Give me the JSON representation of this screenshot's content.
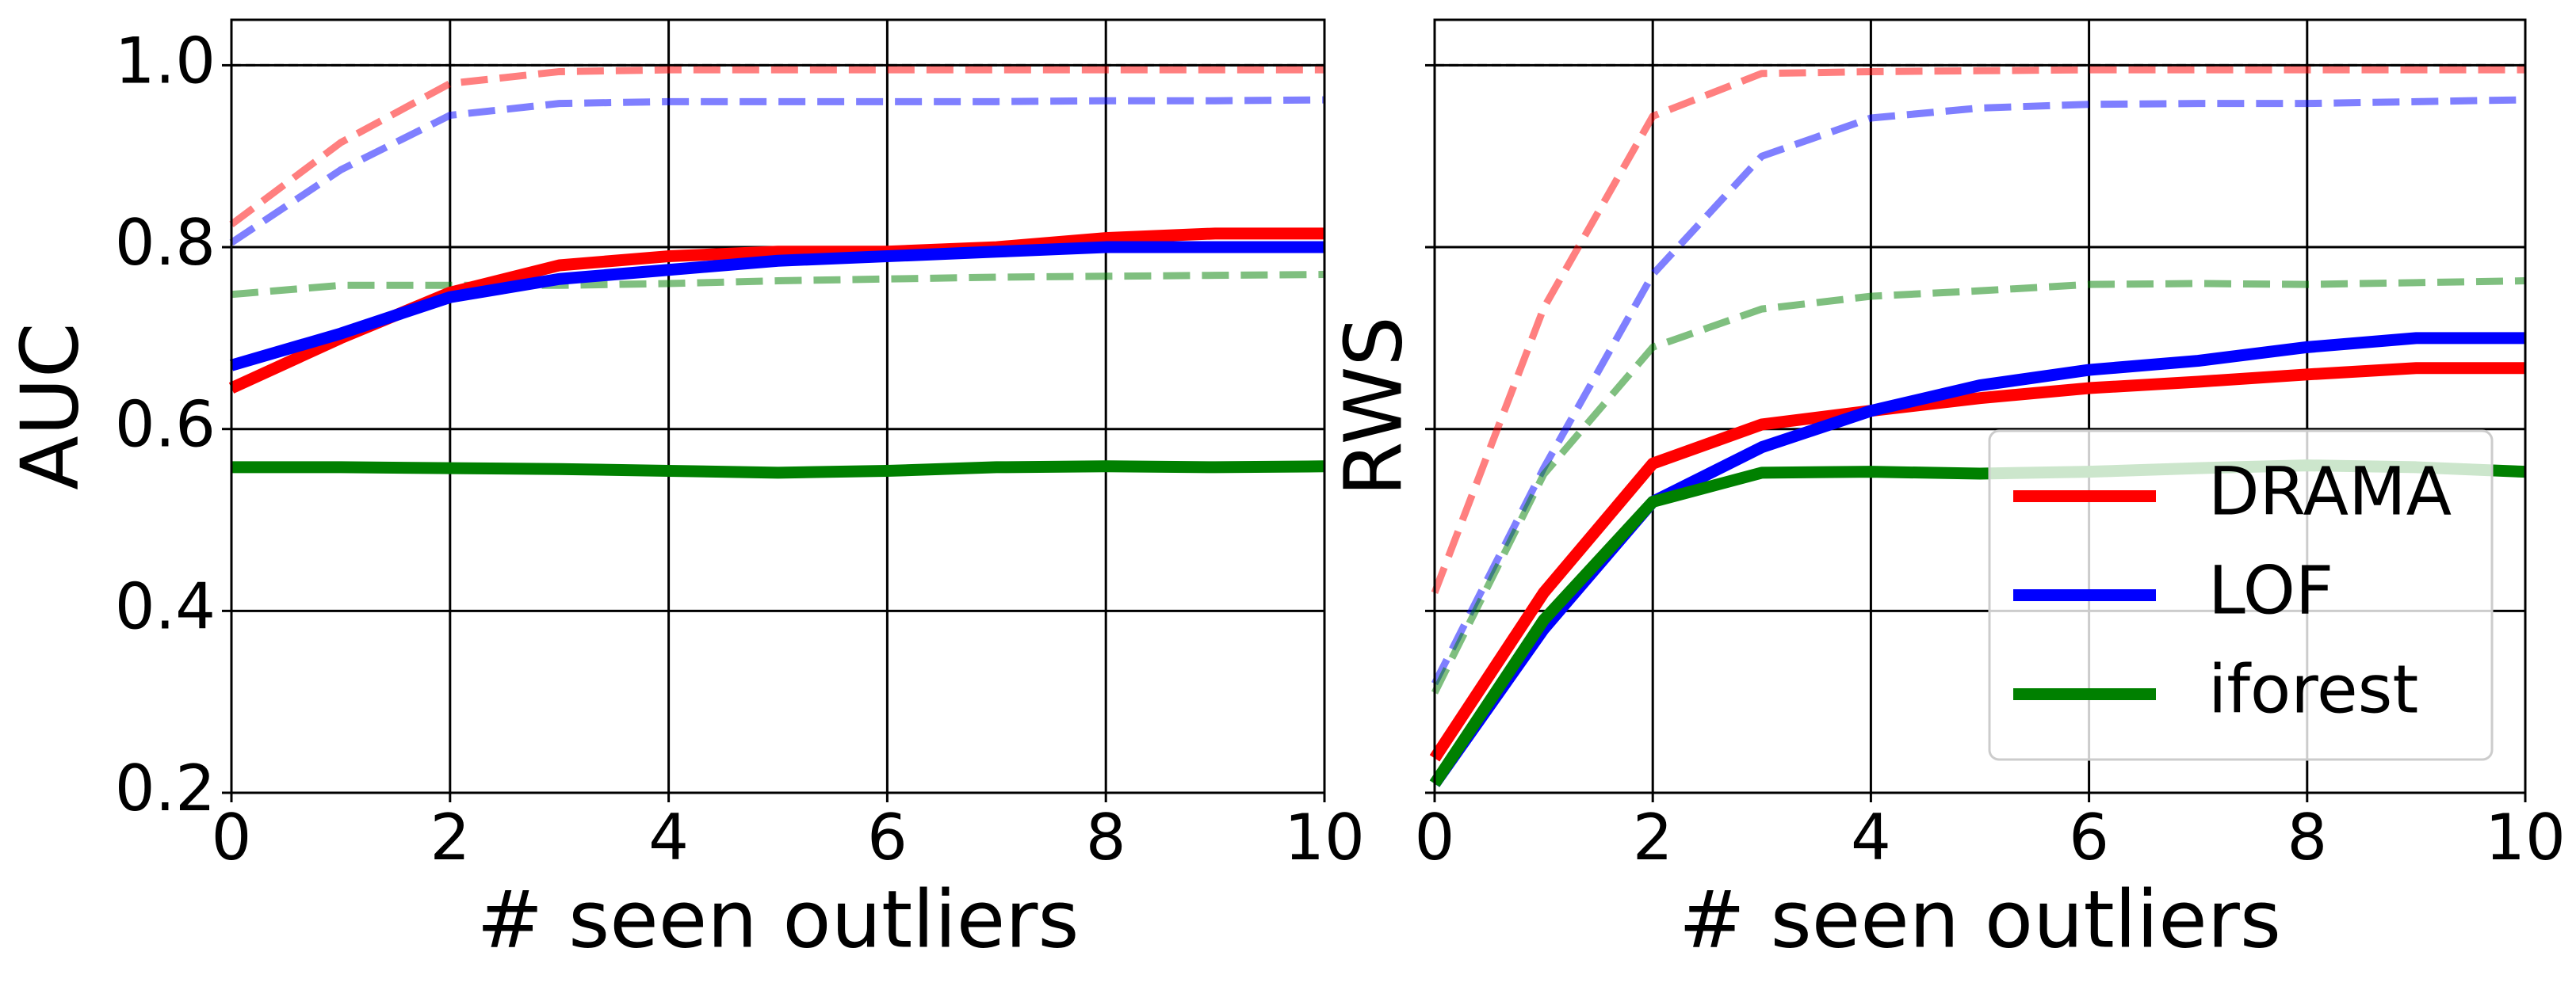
{
  "chart_data": [
    {
      "type": "line",
      "ylabel": "AUC",
      "xlabel": "# seen outliers",
      "x": [
        0,
        1,
        2,
        3,
        4,
        5,
        6,
        7,
        8,
        9,
        10
      ],
      "xlim": [
        0,
        10
      ],
      "xticks": [
        0,
        2,
        4,
        6,
        8,
        10
      ],
      "ylim": [
        0.2,
        1.05
      ],
      "yticks": [
        0.2,
        0.4,
        0.6,
        0.8,
        {
          "value": 1,
          "label": "1.0"
        }
      ],
      "show_ytick_labels": true,
      "grid": true,
      "reference_line": 1,
      "series": [
        {
          "name": "DRAMA",
          "color": "#ff0000",
          "values": [
            0.645,
            0.7,
            0.75,
            0.78,
            0.79,
            0.795,
            0.795,
            0.8,
            0.81,
            0.815,
            0.815
          ]
        },
        {
          "name": "LOF",
          "color": "#0000ff",
          "values": [
            0.67,
            0.705,
            0.745,
            0.765,
            0.775,
            0.785,
            0.79,
            0.795,
            0.8,
            0.8,
            0.8
          ]
        },
        {
          "name": "iforest",
          "color": "#008000",
          "values": [
            0.558,
            0.558,
            0.557,
            0.556,
            0.554,
            0.552,
            0.554,
            0.558,
            0.559,
            0.558,
            0.559
          ]
        },
        {
          "color": "#ff0000",
          "dashed": true,
          "opacity": 0.5,
          "values": [
            0.825,
            0.915,
            0.98,
            0.993,
            0.995,
            0.995,
            0.995,
            0.995,
            0.995,
            0.995,
            0.995
          ]
        },
        {
          "color": "#0000ff",
          "dashed": true,
          "opacity": 0.5,
          "values": [
            0.805,
            0.885,
            0.945,
            0.958,
            0.96,
            0.96,
            0.96,
            0.96,
            0.961,
            0.961,
            0.962
          ]
        },
        {
          "color": "#008000",
          "dashed": true,
          "opacity": 0.5,
          "values": [
            0.748,
            0.758,
            0.758,
            0.758,
            0.76,
            0.763,
            0.765,
            0.767,
            0.768,
            0.769,
            0.77
          ]
        }
      ]
    },
    {
      "type": "line",
      "ylabel": "RWS",
      "xlabel": "# seen outliers",
      "x": [
        0,
        1,
        2,
        3,
        4,
        5,
        6,
        7,
        8,
        9,
        10
      ],
      "xlim": [
        0,
        10
      ],
      "xticks": [
        0,
        2,
        4,
        6,
        8,
        10
      ],
      "ylim": [
        0.2,
        1.05
      ],
      "yticks": [
        0.2,
        0.4,
        0.6,
        0.8,
        1
      ],
      "show_ytick_labels": false,
      "grid": true,
      "reference_line": 1,
      "legend": "lower right",
      "series": [
        {
          "name": "DRAMA",
          "color": "#ff0000",
          "values": [
            0.238,
            0.42,
            0.562,
            0.605,
            0.62,
            0.634,
            0.645,
            0.652,
            0.66,
            0.667,
            0.667
          ]
        },
        {
          "name": "LOF",
          "color": "#0000ff",
          "values": [
            0.21,
            0.38,
            0.52,
            0.58,
            0.62,
            0.648,
            0.665,
            0.675,
            0.69,
            0.7,
            0.7
          ]
        },
        {
          "name": "iforest",
          "color": "#008000",
          "values": [
            0.21,
            0.39,
            0.52,
            0.552,
            0.553,
            0.551,
            0.553,
            0.557,
            0.56,
            0.558,
            0.553
          ]
        },
        {
          "color": "#ff0000",
          "dashed": true,
          "opacity": 0.5,
          "values": [
            0.42,
            0.733,
            0.944,
            0.991,
            0.993,
            0.994,
            0.995,
            0.995,
            0.995,
            0.995,
            0.995
          ]
        },
        {
          "color": "#0000ff",
          "dashed": true,
          "opacity": 0.5,
          "values": [
            0.32,
            0.557,
            0.77,
            0.9,
            0.942,
            0.953,
            0.957,
            0.958,
            0.958,
            0.96,
            0.962
          ]
        },
        {
          "color": "#008000",
          "dashed": true,
          "opacity": 0.5,
          "values": [
            0.31,
            0.55,
            0.69,
            0.732,
            0.746,
            0.752,
            0.759,
            0.76,
            0.759,
            0.761,
            0.763
          ]
        }
      ]
    }
  ]
}
